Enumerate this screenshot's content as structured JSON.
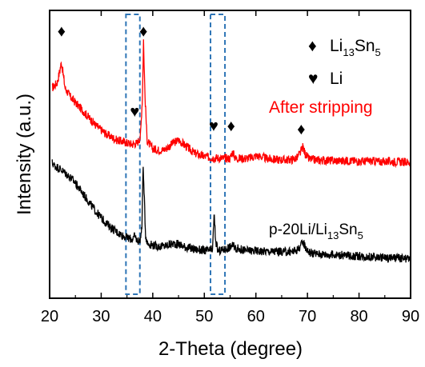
{
  "chart_data": {
    "type": "line",
    "title": "",
    "xlabel": "2-Theta (degree)",
    "ylabel": "Intensity (a.u.)",
    "xlim": [
      20,
      90
    ],
    "ylim": [
      0,
      100
    ],
    "x_ticks": [
      20,
      30,
      40,
      50,
      60,
      70,
      80,
      90
    ],
    "y_ticks_shown": false,
    "grid": false,
    "series": [
      {
        "name": "After stripping",
        "color": "#ff0000",
        "label_position": "right, above trace",
        "points": [
          [
            20.5,
            73
          ],
          [
            21.5,
            75
          ],
          [
            22.3,
            82
          ],
          [
            23,
            73
          ],
          [
            24,
            70
          ],
          [
            25,
            68
          ],
          [
            26,
            66
          ],
          [
            27,
            64
          ],
          [
            28,
            62
          ],
          [
            29,
            60
          ],
          [
            30,
            58.5
          ],
          [
            31,
            57
          ],
          [
            32,
            56
          ],
          [
            33,
            55
          ],
          [
            34,
            54.5
          ],
          [
            35,
            54
          ],
          [
            36,
            53.5
          ],
          [
            37,
            54
          ],
          [
            37.6,
            56
          ],
          [
            38.0,
            70
          ],
          [
            38.2,
            90
          ],
          [
            38.5,
            70
          ],
          [
            38.9,
            55
          ],
          [
            39.5,
            53
          ],
          [
            40,
            52
          ],
          [
            41,
            51.5
          ],
          [
            42,
            51.5
          ],
          [
            43,
            52.5
          ],
          [
            44,
            54
          ],
          [
            45,
            55
          ],
          [
            46,
            53.5
          ],
          [
            47,
            52
          ],
          [
            48,
            50.5
          ],
          [
            49,
            49.8
          ],
          [
            50,
            49.3
          ],
          [
            51,
            49
          ],
          [
            52,
            48.8
          ],
          [
            53,
            48.7
          ],
          [
            54,
            48.6
          ],
          [
            55,
            48.6
          ],
          [
            55.5,
            51
          ],
          [
            56,
            48.6
          ],
          [
            57,
            48.6
          ],
          [
            58,
            48.6
          ],
          [
            59,
            48.8
          ],
          [
            60,
            49.5
          ],
          [
            61,
            49.2
          ],
          [
            62,
            48.6
          ],
          [
            63,
            48.3
          ],
          [
            64,
            48.2
          ],
          [
            65,
            48.1
          ],
          [
            66,
            48.1
          ],
          [
            67,
            48.2
          ],
          [
            68,
            48.8
          ],
          [
            68.6,
            50.5
          ],
          [
            69.1,
            52.5
          ],
          [
            69.6,
            50
          ],
          [
            70.2,
            48.5
          ],
          [
            71,
            48.1
          ],
          [
            72,
            48
          ],
          [
            73,
            47.9
          ],
          [
            74,
            47.9
          ],
          [
            75,
            47.8
          ],
          [
            76,
            47.8
          ],
          [
            77,
            47.7
          ],
          [
            78,
            47.8
          ],
          [
            79,
            47.7
          ],
          [
            80,
            47.6
          ],
          [
            81,
            47.6
          ],
          [
            82,
            47.7
          ],
          [
            83,
            47.6
          ],
          [
            84,
            47.5
          ],
          [
            85,
            47.5
          ],
          [
            86,
            47.5
          ],
          [
            87,
            47.4
          ],
          [
            88,
            47.4
          ],
          [
            89,
            47.3
          ],
          [
            90,
            47.3
          ]
        ]
      },
      {
        "name": "p-20Li/Li13Sn5",
        "color": "#000000",
        "label_position": "right, above trace",
        "points": [
          [
            20.5,
            47
          ],
          [
            21,
            46
          ],
          [
            22,
            45
          ],
          [
            23,
            43.5
          ],
          [
            24,
            42
          ],
          [
            25,
            40
          ],
          [
            26,
            37.5
          ],
          [
            27,
            35
          ],
          [
            28,
            32.5
          ],
          [
            29,
            30
          ],
          [
            30,
            28
          ],
          [
            31,
            26
          ],
          [
            32,
            24.5
          ],
          [
            33,
            23
          ],
          [
            34,
            22
          ],
          [
            35,
            21
          ],
          [
            36,
            20.5
          ],
          [
            36.5,
            21.5
          ],
          [
            37,
            20
          ],
          [
            37.5,
            20
          ],
          [
            37.9,
            24
          ],
          [
            38.1,
            46
          ],
          [
            38.3,
            38
          ],
          [
            38.6,
            22
          ],
          [
            39,
            19
          ],
          [
            40,
            18.5
          ],
          [
            41,
            18
          ],
          [
            42,
            18
          ],
          [
            43,
            18.5
          ],
          [
            44,
            19
          ],
          [
            45,
            18.8
          ],
          [
            46,
            18
          ],
          [
            47,
            17.5
          ],
          [
            48,
            17
          ],
          [
            49,
            16.8
          ],
          [
            50,
            16.6
          ],
          [
            51,
            16.5
          ],
          [
            51.6,
            17
          ],
          [
            51.9,
            29
          ],
          [
            52.2,
            20
          ],
          [
            52.6,
            16.5
          ],
          [
            53,
            16.5
          ],
          [
            54,
            17
          ],
          [
            55,
            17.8
          ],
          [
            55.4,
            18.5
          ],
          [
            56,
            17.5
          ],
          [
            57,
            17
          ],
          [
            58,
            16.6
          ],
          [
            59,
            16.5
          ],
          [
            60,
            16.5
          ],
          [
            61,
            16.4
          ],
          [
            62,
            16.3
          ],
          [
            63,
            16.2
          ],
          [
            64,
            16.2
          ],
          [
            65,
            16.1
          ],
          [
            66,
            16.1
          ],
          [
            67,
            16.2
          ],
          [
            68,
            16.8
          ],
          [
            68.8,
            18.5
          ],
          [
            69.2,
            19.5
          ],
          [
            69.7,
            17.5
          ],
          [
            70.3,
            16
          ],
          [
            71,
            15.6
          ],
          [
            72,
            15.4
          ],
          [
            73,
            15.3
          ],
          [
            74,
            15.2
          ],
          [
            75,
            15.1
          ],
          [
            76,
            15
          ],
          [
            77,
            14.9
          ],
          [
            78,
            14.8
          ],
          [
            79,
            14.7
          ],
          [
            80,
            14.6
          ],
          [
            81,
            14.5
          ],
          [
            82,
            14.4
          ],
          [
            83,
            14.3
          ],
          [
            84,
            14.2
          ],
          [
            85,
            14.1
          ],
          [
            86,
            14
          ],
          [
            87,
            13.9
          ],
          [
            88,
            13.8
          ],
          [
            89,
            13.7
          ],
          [
            90,
            13.6
          ]
        ]
      }
    ],
    "labels": {
      "after_stripping": "After stripping",
      "sample_prefix": "p-20Li/Li",
      "sample_sub1": "13",
      "sample_mid": "Sn",
      "sample_sub2": "5"
    },
    "legend": {
      "placement": "top-right",
      "items": [
        {
          "symbol": "♦",
          "text": "Li",
          "sub1": "13",
          "mid": "Sn",
          "sub2": "5"
        },
        {
          "symbol": "♥",
          "text": "Li",
          "sub1": "",
          "mid": "",
          "sub2": ""
        }
      ]
    },
    "markers": [
      {
        "symbol": "♦",
        "x": 22.3,
        "y": 91
      },
      {
        "symbol": "♦",
        "x": 38.2,
        "y": 91
      },
      {
        "symbol": "♥",
        "x": 36.5,
        "y": 63
      },
      {
        "symbol": "♥",
        "x": 51.8,
        "y": 58
      },
      {
        "symbol": "♦",
        "x": 55.2,
        "y": 58
      },
      {
        "symbol": "♦",
        "x": 68.8,
        "y": 57
      }
    ],
    "highlight_regions": [
      {
        "x_start": 34.8,
        "x_end": 37.5,
        "style": "dashed",
        "color": "#2e75b6"
      },
      {
        "x_start": 51.2,
        "x_end": 54.0,
        "style": "dashed",
        "color": "#2e75b6"
      }
    ]
  }
}
